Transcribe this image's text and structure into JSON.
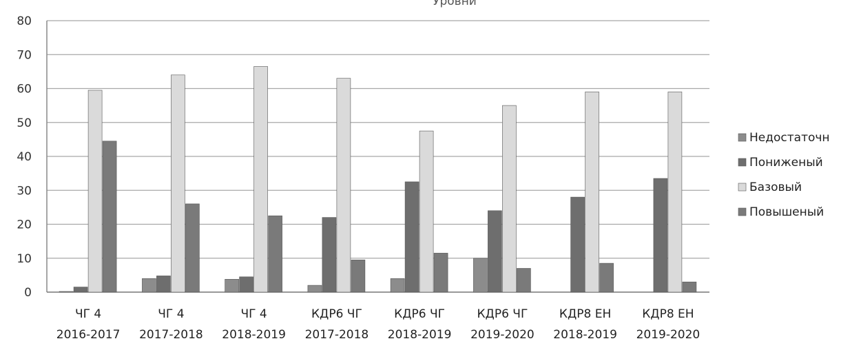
{
  "chart_data": {
    "type": "bar",
    "title": "Уровни",
    "categories": [
      [
        "ЧГ 4",
        "2016-2017"
      ],
      [
        "ЧГ 4",
        "2017-2018"
      ],
      [
        "ЧГ 4",
        "2018-2019"
      ],
      [
        "КДР6 ЧГ",
        "2017-2018"
      ],
      [
        "КДР6 ЧГ",
        "2018-2019"
      ],
      [
        "КДР6 ЧГ",
        "2019-2020"
      ],
      [
        "КДР8 ЕН",
        "2018-2019"
      ],
      [
        "КДР8 ЕН",
        "2019-2020"
      ]
    ],
    "series": [
      {
        "name": "Недостаточн",
        "color": "#8c8c8c",
        "values": [
          0.2,
          4,
          3.8,
          2,
          4,
          10,
          0,
          0
        ]
      },
      {
        "name": "Пониженый",
        "color": "#6e6e6e",
        "values": [
          1.5,
          4.8,
          4.5,
          22,
          32.5,
          24,
          28,
          33.5
        ]
      },
      {
        "name": "Базовый",
        "color": "#dadada",
        "values": [
          59.5,
          64,
          66.5,
          63,
          47.5,
          55,
          59,
          59
        ]
      },
      {
        "name": "Повышеный",
        "color": "#7a7a7a",
        "values": [
          44.5,
          26,
          22.5,
          9.5,
          11.5,
          7,
          8.5,
          3
        ]
      }
    ],
    "yticks": [
      0,
      10,
      20,
      30,
      40,
      50,
      60,
      70,
      80
    ],
    "ylim": [
      0,
      80
    ],
    "grid": true,
    "legend": "right"
  }
}
